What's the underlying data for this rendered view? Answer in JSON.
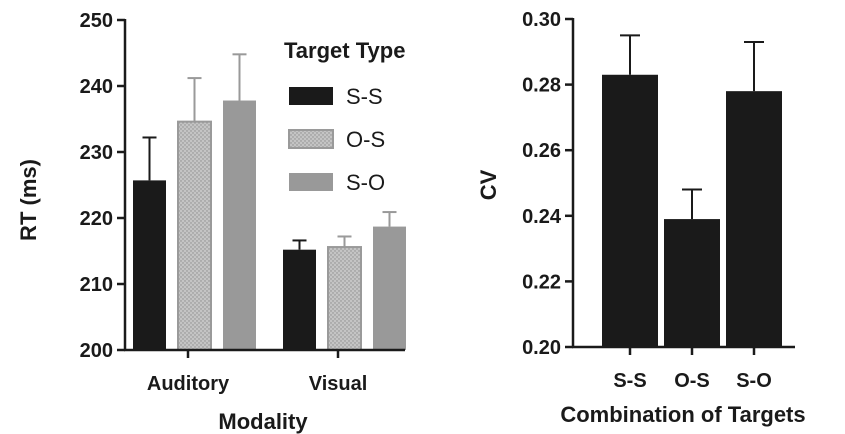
{
  "chart_data": [
    {
      "type": "bar",
      "xlabel": "Modality",
      "ylabel": "RT (ms)",
      "ylim": [
        200,
        250
      ],
      "yticks": [
        200,
        210,
        220,
        230,
        240,
        250
      ],
      "categories": [
        "Auditory",
        "Visual"
      ],
      "legend": {
        "title": "Target Type",
        "placement": "top-right"
      },
      "series": [
        {
          "name": "S-S",
          "values": [
            225.7,
            215.2
          ],
          "errors": [
            6.5,
            1.4
          ],
          "color": "#1a1a1a",
          "pattern": "solid"
        },
        {
          "name": "O-S",
          "values": [
            234.6,
            215.6
          ],
          "errors": [
            6.6,
            1.6
          ],
          "color": "#c4c4c4",
          "pattern": "dotted"
        },
        {
          "name": "S-O",
          "values": [
            237.8,
            218.7
          ],
          "errors": [
            7.0,
            2.2
          ],
          "color": "#999999",
          "pattern": "solid"
        }
      ],
      "grid": false
    },
    {
      "type": "bar",
      "xlabel": "Combination of Targets",
      "ylabel": "CV",
      "ylim": [
        0.2,
        0.3
      ],
      "yticks": [
        "0.20",
        "0.22",
        "0.24",
        "0.26",
        "0.28",
        "0.30"
      ],
      "categories": [
        "S-S",
        "O-S",
        "S-O"
      ],
      "values": [
        0.283,
        0.239,
        0.278
      ],
      "errors": [
        0.012,
        0.009,
        0.015
      ],
      "color": "#1a1a1a",
      "grid": false
    }
  ]
}
